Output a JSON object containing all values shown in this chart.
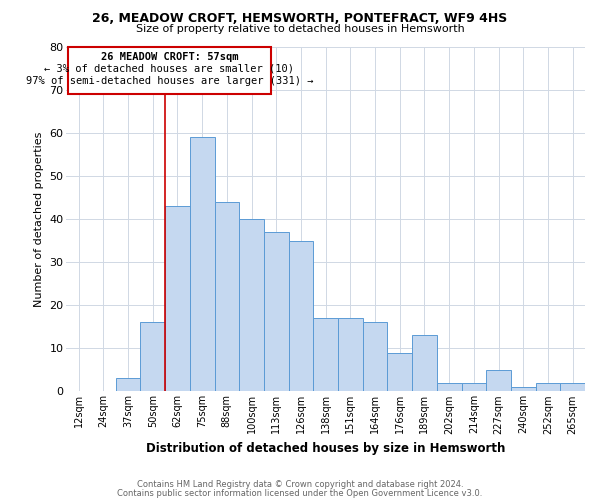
{
  "title1": "26, MEADOW CROFT, HEMSWORTH, PONTEFRACT, WF9 4HS",
  "title2": "Size of property relative to detached houses in Hemsworth",
  "xlabel": "Distribution of detached houses by size in Hemsworth",
  "ylabel": "Number of detached properties",
  "footnote1": "Contains HM Land Registry data © Crown copyright and database right 2024.",
  "footnote2": "Contains public sector information licensed under the Open Government Licence v3.0.",
  "annotation_line1": "26 MEADOW CROFT: 57sqm",
  "annotation_line2": "← 3% of detached houses are smaller (10)",
  "annotation_line3": "97% of semi-detached houses are larger (331) →",
  "bin_labels": [
    "12sqm",
    "24sqm",
    "37sqm",
    "50sqm",
    "62sqm",
    "75sqm",
    "88sqm",
    "100sqm",
    "113sqm",
    "126sqm",
    "138sqm",
    "151sqm",
    "164sqm",
    "176sqm",
    "189sqm",
    "202sqm",
    "214sqm",
    "227sqm",
    "240sqm",
    "252sqm",
    "265sqm"
  ],
  "bar_heights": [
    0,
    0,
    3,
    16,
    43,
    59,
    44,
    40,
    37,
    35,
    17,
    17,
    16,
    9,
    13,
    2,
    2,
    5,
    1,
    2,
    2
  ],
  "bar_color": "#c5d8f0",
  "bar_edge_color": "#5b9bd5",
  "property_line_x": 3.5,
  "property_line_color": "#cc0000",
  "ylim": [
    0,
    80
  ],
  "background_color": "#ffffff",
  "grid_color": "#d0d8e4"
}
